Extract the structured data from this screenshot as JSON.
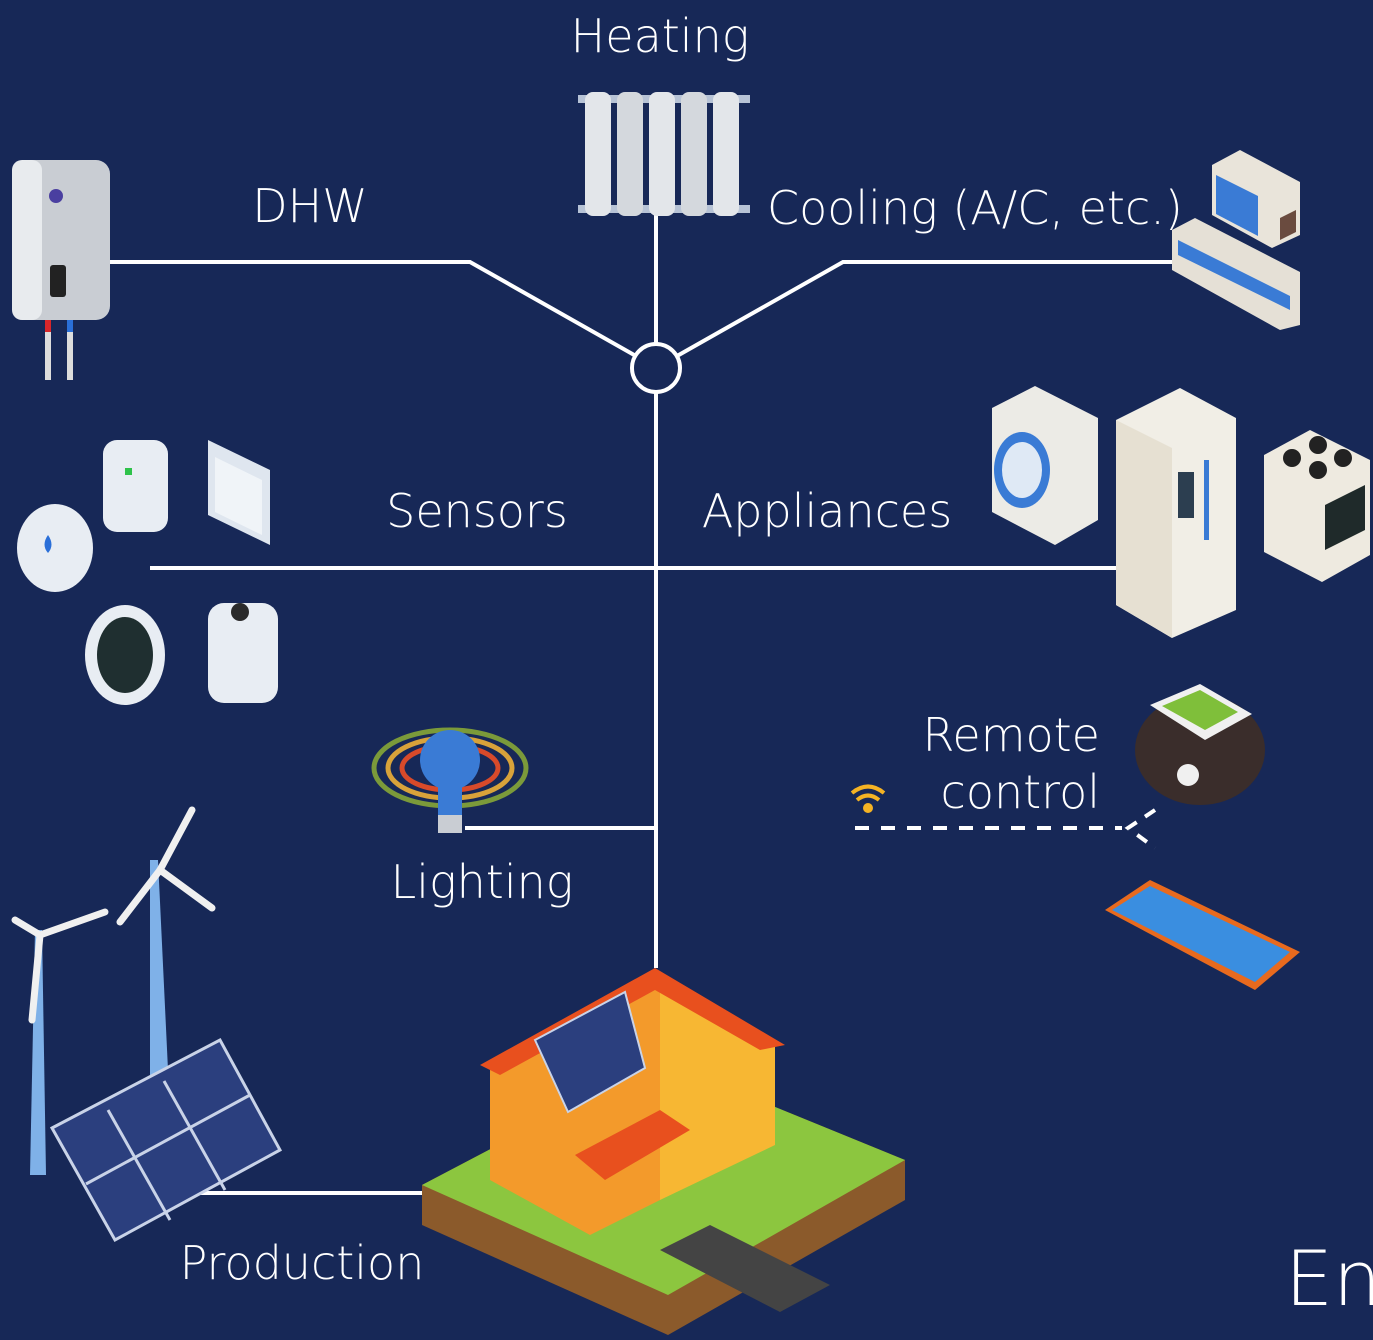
{
  "nodes": [
    {
      "label": "Heating"
    },
    {
      "label": "DHW"
    },
    {
      "label": "Cooling (A/C, etc.)"
    },
    {
      "label": "Sensors"
    },
    {
      "label": "Appliances"
    },
    {
      "label": "Lighting"
    },
    {
      "label_lines": [
        "Remote",
        "control"
      ]
    },
    {
      "label": "Production"
    }
  ],
  "corner_text": "En"
}
